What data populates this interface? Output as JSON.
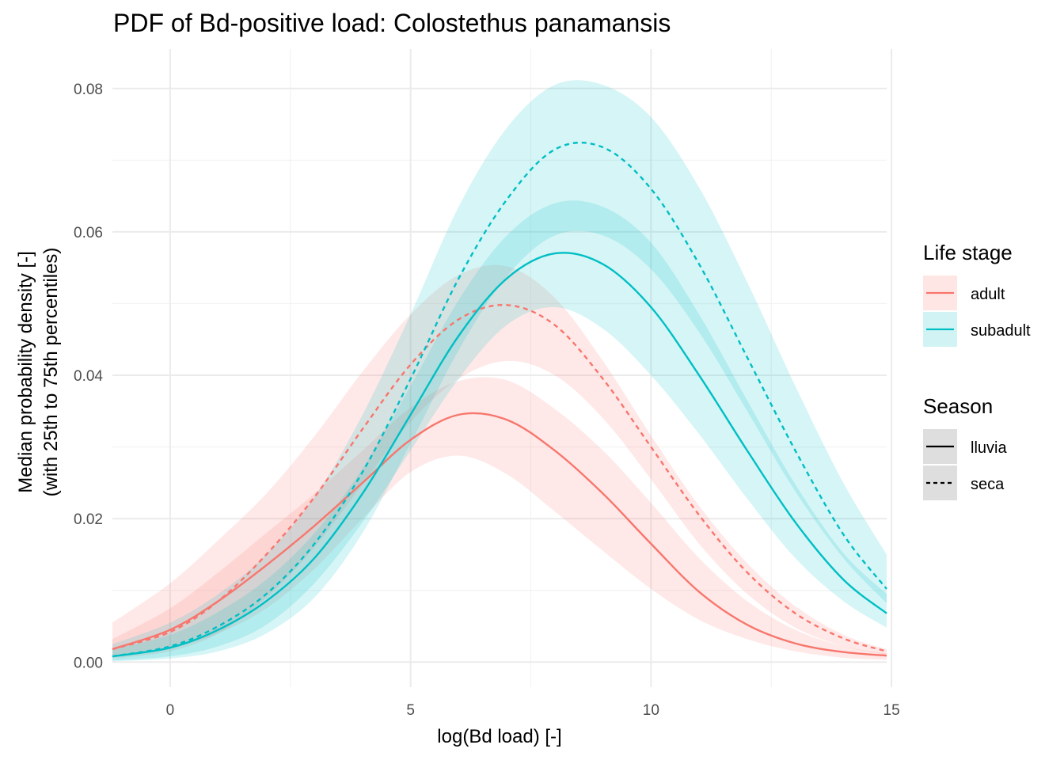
{
  "chart_data": {
    "type": "line",
    "title": "PDF of Bd-positive load: Colostethus panamansis",
    "xlabel": "log(Bd load) [-]",
    "ylabel_line1": "Median probability density [-]",
    "ylabel_line2": "(with 25th to 75th percentiles)",
    "xlim": [
      -1.2,
      14.9
    ],
    "ylim": [
      -0.0035,
      0.0855
    ],
    "x_ticks": [
      0,
      5,
      10,
      15
    ],
    "x_tick_labels": [
      "0",
      "5",
      "10",
      "15"
    ],
    "y_ticks": [
      0,
      0.02,
      0.04,
      0.06,
      0.08
    ],
    "y_tick_labels": [
      "0.00",
      "0.02",
      "0.04",
      "0.06",
      "0.08"
    ],
    "grid": true,
    "x": [
      -1.2,
      0,
      1,
      2,
      3,
      4,
      5,
      6,
      7,
      8,
      9,
      10,
      11,
      12,
      13,
      14,
      14.9
    ],
    "series": [
      {
        "name": "adult lluvia",
        "life_stage": "adult",
        "season": "lluvia",
        "color": "#F8766D",
        "dash": "solid",
        "median": [
          0.0018,
          0.0045,
          0.0085,
          0.0135,
          0.019,
          0.025,
          0.031,
          0.0345,
          0.0338,
          0.0295,
          0.0235,
          0.0165,
          0.0098,
          0.0052,
          0.0026,
          0.0014,
          0.0009
        ],
        "lower": [
          0.0008,
          0.002,
          0.004,
          0.0075,
          0.013,
          0.02,
          0.0265,
          0.0288,
          0.0262,
          0.021,
          0.0155,
          0.0102,
          0.0059,
          0.0032,
          0.0015,
          0.0006,
          0.0003
        ],
        "upper": [
          0.0032,
          0.0075,
          0.0125,
          0.018,
          0.0235,
          0.0295,
          0.0355,
          0.0392,
          0.0393,
          0.0353,
          0.0295,
          0.0222,
          0.0145,
          0.0085,
          0.0045,
          0.0022,
          0.0012
        ]
      },
      {
        "name": "adult seca",
        "life_stage": "adult",
        "season": "seca",
        "color": "#F8766D",
        "dash": "dashed",
        "median": [
          0.0018,
          0.0042,
          0.0085,
          0.015,
          0.023,
          0.0325,
          0.0415,
          0.0478,
          0.0498,
          0.047,
          0.0395,
          0.03,
          0.0205,
          0.0125,
          0.0068,
          0.0033,
          0.0015
        ],
        "lower": [
          0.0005,
          0.0015,
          0.004,
          0.009,
          0.016,
          0.0248,
          0.0335,
          0.0395,
          0.042,
          0.04,
          0.034,
          0.0255,
          0.0165,
          0.0095,
          0.0048,
          0.0022,
          0.001
        ],
        "upper": [
          0.0055,
          0.011,
          0.017,
          0.0235,
          0.0315,
          0.0405,
          0.0485,
          0.054,
          0.0552,
          0.0508,
          0.042,
          0.0316,
          0.0218,
          0.0138,
          0.0078,
          0.0038,
          0.0018
        ]
      },
      {
        "name": "subadult lluvia",
        "life_stage": "subadult",
        "season": "lluvia",
        "color": "#00BFC4",
        "dash": "solid",
        "median": [
          0.0008,
          0.002,
          0.0045,
          0.0085,
          0.0145,
          0.0235,
          0.0345,
          0.0455,
          0.0535,
          0.057,
          0.0555,
          0.0495,
          0.04,
          0.0295,
          0.0195,
          0.0115,
          0.0068
        ],
        "lower": [
          0.0002,
          0.0008,
          0.0022,
          0.0052,
          0.011,
          0.0195,
          0.0295,
          0.0395,
          0.047,
          0.0495,
          0.0465,
          0.04,
          0.0318,
          0.0228,
          0.0145,
          0.0085,
          0.0048
        ],
        "upper": [
          0.0018,
          0.0038,
          0.007,
          0.0115,
          0.018,
          0.027,
          0.0385,
          0.0505,
          0.0595,
          0.064,
          0.0635,
          0.0585,
          0.0485,
          0.0365,
          0.0248,
          0.0152,
          0.0095
        ]
      },
      {
        "name": "subadult seca",
        "life_stage": "subadult",
        "season": "seca",
        "color": "#00BFC4",
        "dash": "dashed",
        "median": [
          0.0008,
          0.0022,
          0.005,
          0.0095,
          0.0165,
          0.0265,
          0.0395,
          0.0535,
          0.0645,
          0.0715,
          0.0718,
          0.066,
          0.0555,
          0.0425,
          0.0295,
          0.0178,
          0.0102
        ],
        "lower": [
          0.0001,
          0.0005,
          0.0015,
          0.004,
          0.009,
          0.018,
          0.0305,
          0.0435,
          0.0538,
          0.0595,
          0.0595,
          0.0548,
          0.046,
          0.035,
          0.0238,
          0.0145,
          0.0082
        ],
        "upper": [
          0.0025,
          0.0055,
          0.0095,
          0.015,
          0.023,
          0.0345,
          0.0485,
          0.0635,
          0.0745,
          0.0805,
          0.0805,
          0.076,
          0.0662,
          0.053,
          0.0385,
          0.025,
          0.015
        ]
      }
    ],
    "legend": {
      "placement": "right",
      "life_stage_title": "Life stage",
      "life_stage_items": [
        {
          "label": "adult",
          "color": "#F8766D"
        },
        {
          "label": "subadult",
          "color": "#00BFC4"
        }
      ],
      "season_title": "Season",
      "season_items": [
        {
          "label": "lluvia",
          "dash": "solid"
        },
        {
          "label": "seca",
          "dash": "dashed"
        }
      ]
    }
  }
}
